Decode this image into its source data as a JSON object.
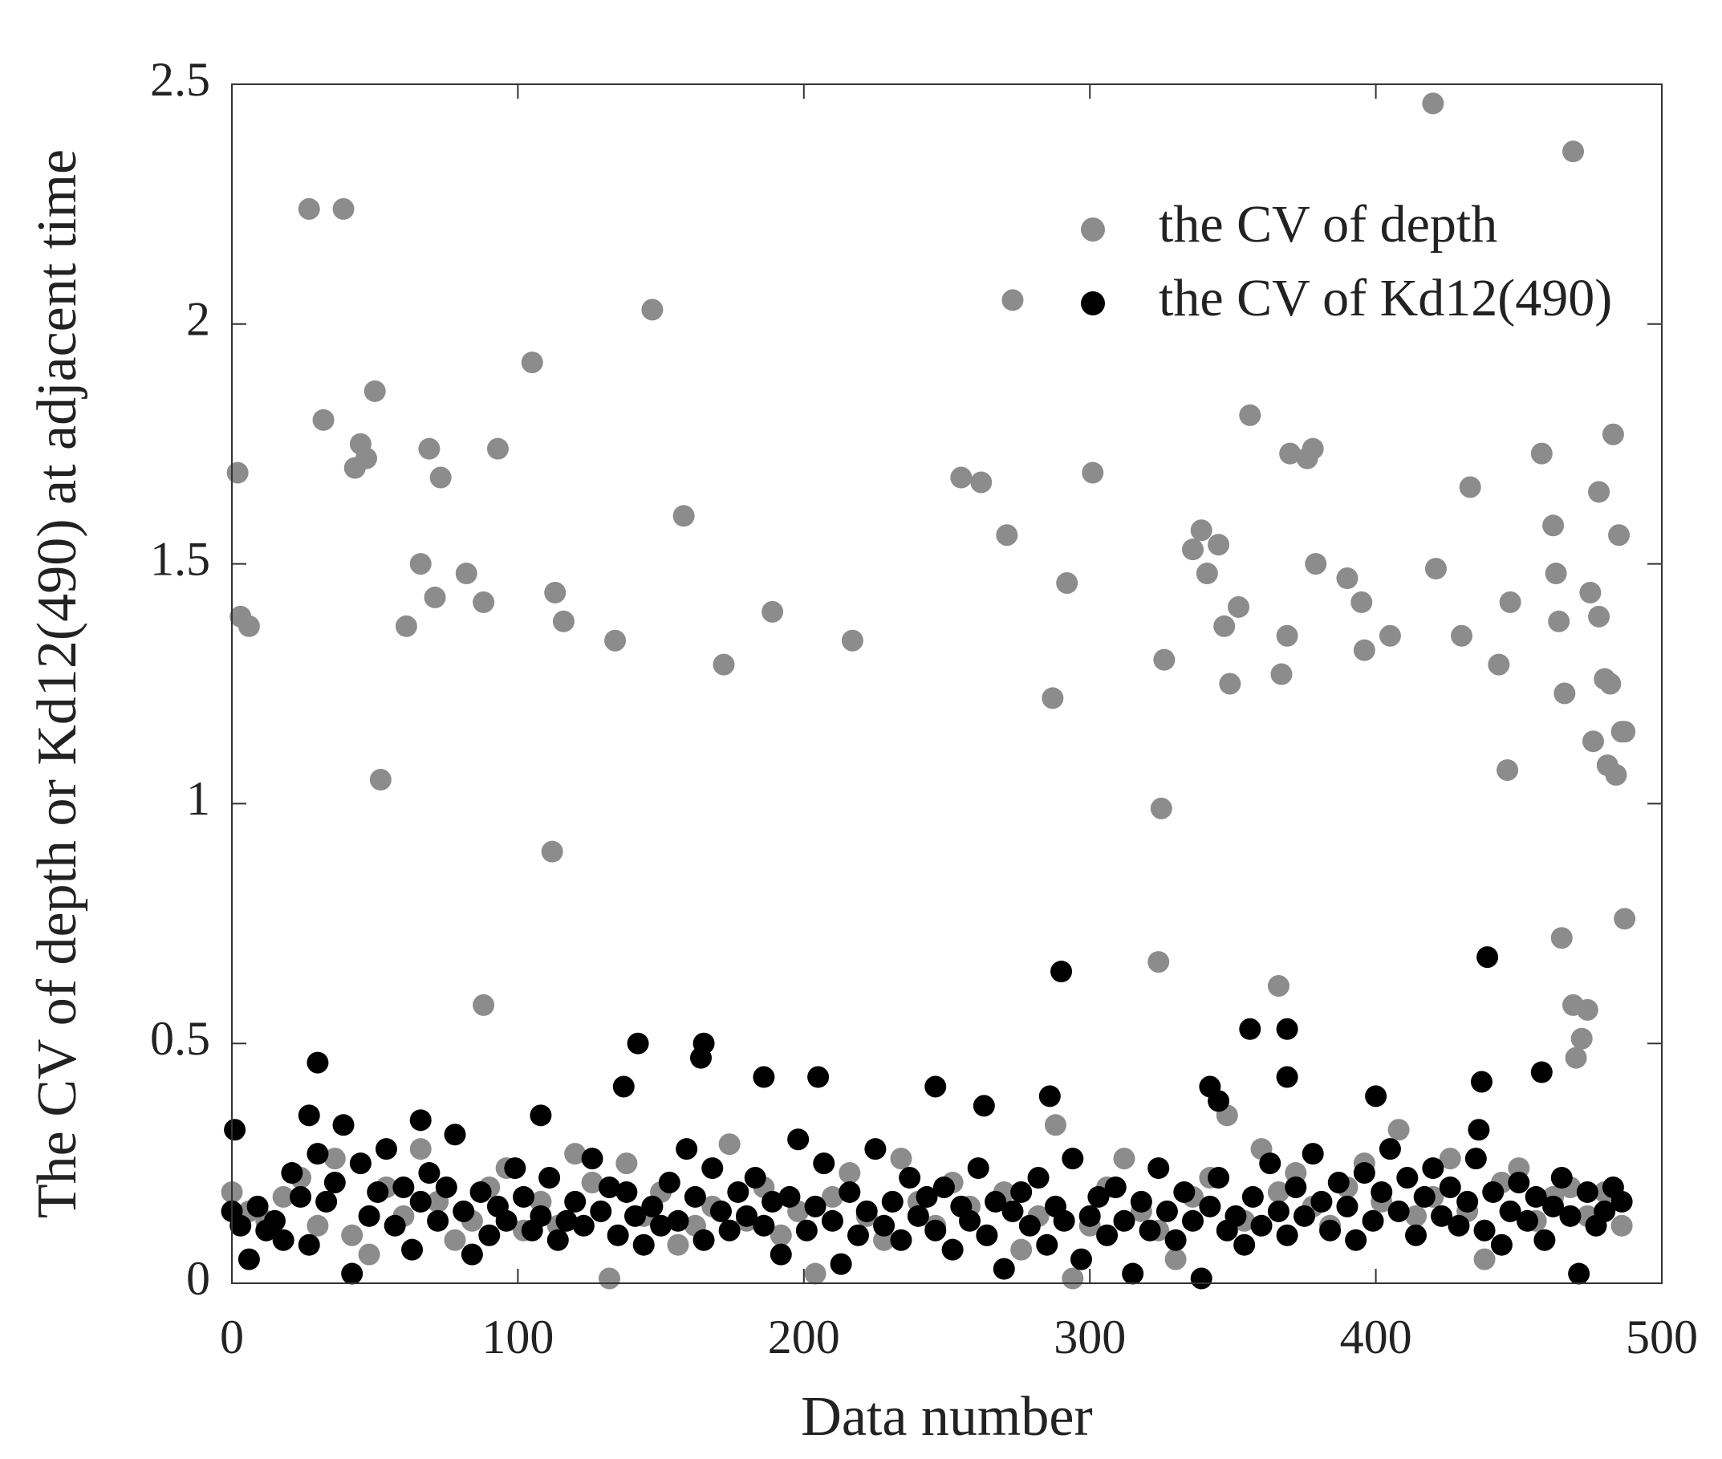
{
  "chart_data": {
    "type": "scatter",
    "xlabel": "Data number",
    "ylabel": "The CV of depth or Kd12(490) at adjacent time",
    "xlim": [
      0,
      500
    ],
    "xticks": [
      0,
      100,
      200,
      300,
      400,
      500
    ],
    "ylim": [
      0,
      2.5
    ],
    "yticks": [
      0,
      0.5,
      1,
      1.5,
      2,
      2.5
    ],
    "grid": false,
    "legend": "upper right",
    "series": [
      {
        "name": "the CV of depth",
        "color": "#8c8c8c",
        "x": [
          2,
          3,
          6,
          27,
          39,
          32,
          43,
          45,
          47,
          50,
          52,
          61,
          66,
          69,
          71,
          73,
          82,
          88,
          88,
          93,
          105,
          112,
          113,
          116,
          134,
          147,
          158,
          172,
          189,
          217,
          255,
          262,
          271,
          273,
          287,
          292,
          301,
          324,
          325,
          326,
          336,
          339,
          341,
          345,
          347,
          349,
          352,
          356,
          366,
          367,
          369,
          370,
          376,
          378,
          379,
          390,
          395,
          396,
          405,
          420,
          421,
          430,
          433,
          443,
          446,
          447,
          458,
          462,
          463,
          464,
          466,
          465,
          469,
          469,
          470,
          472,
          474,
          475,
          476,
          478,
          478,
          480,
          481,
          482,
          483,
          484,
          485,
          486,
          487,
          487,
          0,
          6,
          12,
          18,
          24,
          30,
          36,
          42,
          48,
          54,
          60,
          66,
          72,
          78,
          84,
          90,
          96,
          102,
          108,
          114,
          120,
          126,
          132,
          138,
          144,
          150,
          156,
          162,
          168,
          174,
          180,
          186,
          192,
          198,
          204,
          210,
          216,
          222,
          228,
          234,
          240,
          246,
          252,
          258,
          264,
          270,
          276,
          282,
          288,
          294,
          300,
          306,
          312,
          318,
          324,
          330,
          336,
          342,
          348,
          354,
          360,
          366,
          372,
          378,
          384,
          390,
          396,
          402,
          408,
          414,
          420,
          426,
          432,
          438,
          444,
          450,
          456,
          462,
          468,
          474,
          480,
          486
        ],
        "values": [
          1.69,
          1.39,
          1.37,
          2.24,
          2.24,
          1.8,
          1.7,
          1.75,
          1.72,
          1.86,
          1.05,
          1.37,
          1.5,
          1.74,
          1.43,
          1.68,
          1.48,
          1.42,
          0.58,
          1.74,
          1.92,
          0.9,
          1.44,
          1.38,
          1.34,
          2.03,
          1.6,
          1.29,
          1.4,
          1.34,
          1.68,
          1.67,
          1.56,
          2.05,
          1.22,
          1.46,
          1.69,
          0.67,
          0.99,
          1.3,
          1.53,
          1.57,
          1.48,
          1.54,
          1.37,
          1.25,
          1.41,
          1.81,
          0.62,
          1.27,
          1.35,
          1.73,
          1.72,
          1.74,
          1.5,
          1.47,
          1.42,
          1.32,
          1.35,
          2.46,
          1.49,
          1.35,
          1.66,
          1.29,
          1.07,
          1.42,
          1.73,
          1.58,
          1.48,
          1.38,
          1.23,
          0.72,
          2.36,
          0.58,
          0.47,
          0.51,
          0.57,
          1.44,
          1.13,
          1.65,
          1.39,
          1.26,
          1.08,
          1.25,
          1.77,
          1.06,
          1.56,
          1.15,
          1.15,
          0.76,
          0.19,
          0.15,
          0.13,
          0.18,
          0.22,
          0.12,
          0.26,
          0.1,
          0.06,
          0.2,
          0.14,
          0.28,
          0.17,
          0.09,
          0.13,
          0.2,
          0.24,
          0.11,
          0.17,
          0.12,
          0.27,
          0.21,
          0.01,
          0.25,
          0.14,
          0.19,
          0.08,
          0.12,
          0.16,
          0.29,
          0.13,
          0.2,
          0.1,
          0.15,
          0.02,
          0.18,
          0.23,
          0.14,
          0.09,
          0.26,
          0.17,
          0.12,
          0.21,
          0.16,
          0.1,
          0.19,
          0.07,
          0.14,
          0.33,
          0.01,
          0.12,
          0.2,
          0.26,
          0.15,
          0.11,
          0.05,
          0.18,
          0.22,
          0.35,
          0.13,
          0.28,
          0.19,
          0.23,
          0.16,
          0.12,
          0.2,
          0.25,
          0.17,
          0.32,
          0.14,
          0.18,
          0.26,
          0.15,
          0.05,
          0.21,
          0.24,
          0.13,
          0.18,
          0.2,
          0.14,
          0.19,
          0.12
        ]
      },
      {
        "name": "the CV of Kd12(490)",
        "color": "#000000",
        "x": [
          1,
          27,
          30,
          66,
          108,
          137,
          142,
          164,
          165,
          186,
          205,
          246,
          263,
          286,
          290,
          342,
          345,
          356,
          369,
          369,
          400,
          436,
          437,
          439,
          458,
          0,
          3,
          6,
          9,
          12,
          15,
          18,
          21,
          24,
          27,
          30,
          33,
          36,
          39,
          42,
          45,
          48,
          51,
          54,
          57,
          60,
          63,
          66,
          69,
          72,
          75,
          78,
          81,
          84,
          87,
          90,
          93,
          96,
          99,
          102,
          105,
          108,
          111,
          114,
          117,
          120,
          123,
          126,
          129,
          132,
          135,
          138,
          141,
          144,
          147,
          150,
          153,
          156,
          159,
          162,
          165,
          168,
          171,
          174,
          177,
          180,
          183,
          186,
          189,
          192,
          195,
          198,
          201,
          204,
          207,
          210,
          213,
          216,
          219,
          222,
          225,
          228,
          231,
          234,
          237,
          240,
          243,
          246,
          249,
          252,
          255,
          258,
          261,
          264,
          267,
          270,
          273,
          276,
          279,
          282,
          285,
          288,
          291,
          294,
          297,
          300,
          303,
          306,
          309,
          312,
          315,
          318,
          321,
          324,
          327,
          330,
          333,
          336,
          339,
          342,
          345,
          348,
          351,
          354,
          357,
          360,
          363,
          366,
          369,
          372,
          375,
          378,
          381,
          384,
          387,
          390,
          393,
          396,
          399,
          402,
          405,
          408,
          411,
          414,
          417,
          420,
          423,
          426,
          429,
          432,
          435,
          438,
          441,
          444,
          447,
          450,
          453,
          456,
          459,
          462,
          465,
          468,
          471,
          474,
          477,
          480,
          483,
          486
        ],
        "values": [
          0.32,
          0.35,
          0.46,
          0.34,
          0.35,
          0.41,
          0.5,
          0.47,
          0.5,
          0.43,
          0.43,
          0.41,
          0.37,
          0.39,
          0.65,
          0.41,
          0.38,
          0.53,
          0.53,
          0.43,
          0.39,
          0.32,
          0.42,
          0.68,
          0.44,
          0.15,
          0.12,
          0.05,
          0.16,
          0.11,
          0.13,
          0.09,
          0.23,
          0.18,
          0.08,
          0.27,
          0.17,
          0.21,
          0.33,
          0.02,
          0.25,
          0.14,
          0.19,
          0.28,
          0.12,
          0.2,
          0.07,
          0.17,
          0.23,
          0.13,
          0.2,
          0.31,
          0.15,
          0.06,
          0.19,
          0.1,
          0.16,
          0.13,
          0.24,
          0.18,
          0.11,
          0.14,
          0.22,
          0.09,
          0.13,
          0.17,
          0.12,
          0.26,
          0.15,
          0.2,
          0.1,
          0.19,
          0.14,
          0.08,
          0.16,
          0.12,
          0.21,
          0.13,
          0.28,
          0.18,
          0.09,
          0.24,
          0.15,
          0.11,
          0.19,
          0.14,
          0.22,
          0.12,
          0.17,
          0.06,
          0.18,
          0.3,
          0.11,
          0.16,
          0.25,
          0.13,
          0.04,
          0.19,
          0.1,
          0.15,
          0.28,
          0.12,
          0.17,
          0.09,
          0.22,
          0.14,
          0.18,
          0.11,
          0.2,
          0.07,
          0.16,
          0.13,
          0.24,
          0.1,
          0.17,
          0.03,
          0.15,
          0.19,
          0.12,
          0.22,
          0.08,
          0.16,
          0.13,
          0.26,
          0.05,
          0.14,
          0.18,
          0.1,
          0.2,
          0.13,
          0.02,
          0.17,
          0.11,
          0.24,
          0.15,
          0.09,
          0.19,
          0.13,
          0.01,
          0.16,
          0.22,
          0.11,
          0.14,
          0.08,
          0.18,
          0.12,
          0.25,
          0.15,
          0.1,
          0.2,
          0.14,
          0.27,
          0.17,
          0.11,
          0.21,
          0.16,
          0.09,
          0.23,
          0.13,
          0.19,
          0.28,
          0.15,
          0.22,
          0.1,
          0.18,
          0.24,
          0.14,
          0.2,
          0.12,
          0.17,
          0.26,
          0.11,
          0.19,
          0.08,
          0.15,
          0.21,
          0.13,
          0.18,
          0.09,
          0.16,
          0.22,
          0.14,
          0.02,
          0.19,
          0.12,
          0.15,
          0.2,
          0.17
        ]
      }
    ]
  }
}
